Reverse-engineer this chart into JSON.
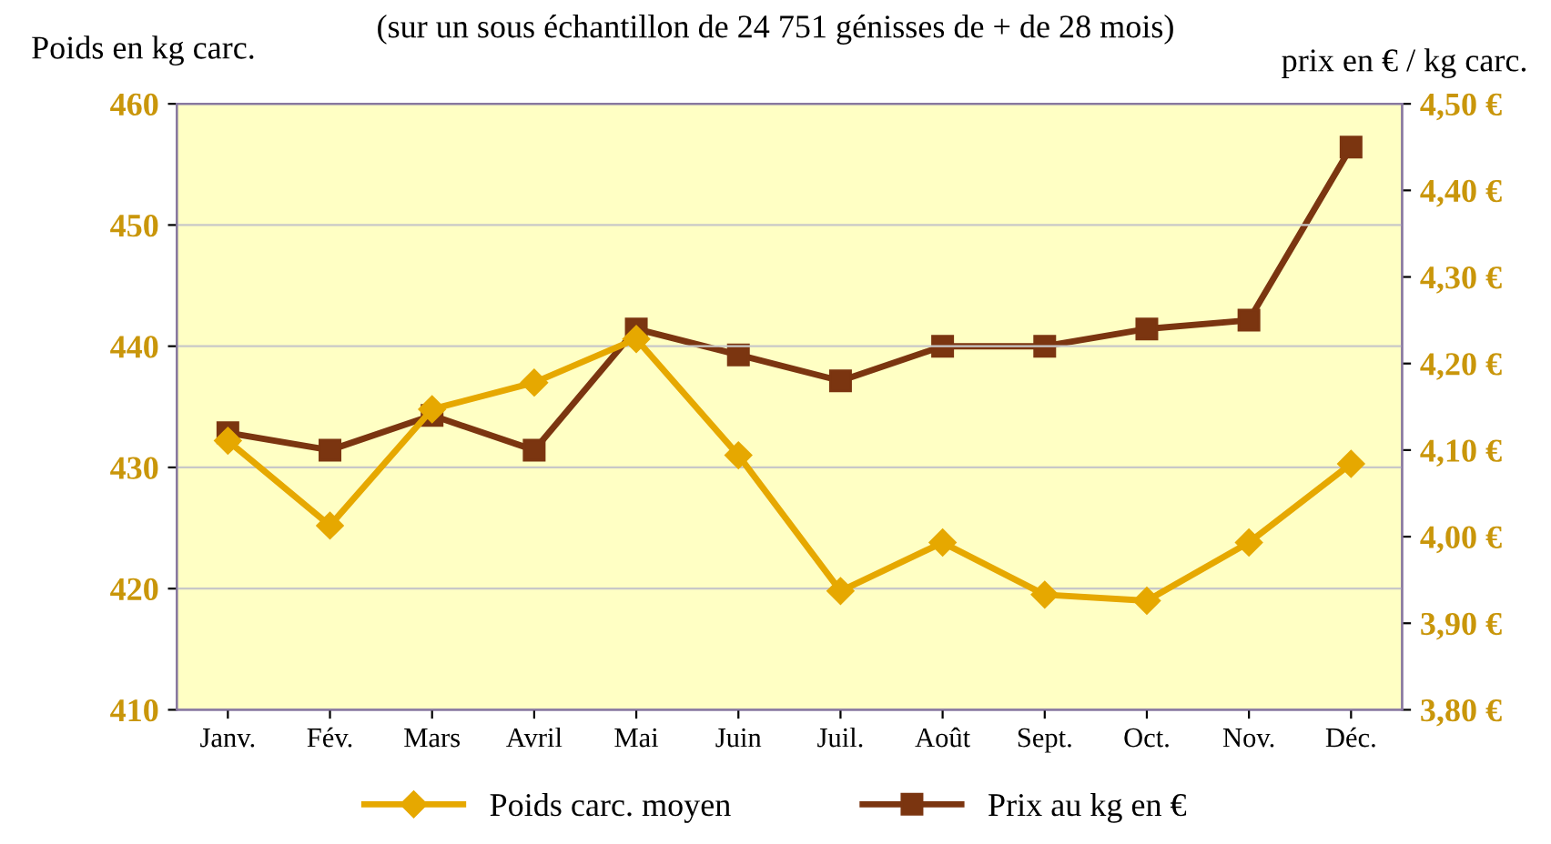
{
  "chart_data": {
    "type": "line",
    "title": "(sur un sous échantillon de 24 751 génisses de + de 28 mois)",
    "ylabel": "Poids en kg carc.",
    "y2label": "prix en € / kg carc.",
    "categories": [
      "Janv.",
      "Fév.",
      "Mars",
      "Avril",
      "Mai",
      "Juin",
      "Juil.",
      "Août",
      "Sept.",
      "Oct.",
      "Nov.",
      "Déc."
    ],
    "series": [
      {
        "name": "Poids carc. moyen",
        "color": "#e6a800",
        "marker": "diamond",
        "values": [
          432.2,
          425.2,
          434.8,
          437.0,
          440.6,
          431.0,
          419.8,
          423.8,
          419.5,
          419.0,
          423.8,
          430.3
        ]
      },
      {
        "name": "Prix au kg en €",
        "color": "#7b3510",
        "marker": "square",
        "axis": "y2",
        "values": [
          4.12,
          4.1,
          4.14,
          4.1,
          4.24,
          4.21,
          4.18,
          4.22,
          4.22,
          4.24,
          4.25,
          4.45
        ]
      }
    ],
    "ylim": [
      410,
      460
    ],
    "yticks": [
      410,
      420,
      430,
      440,
      450,
      460
    ],
    "y2lim": [
      3.8,
      4.5
    ],
    "y2ticks": [
      {
        "value": 3.8,
        "label": "3,80 €"
      },
      {
        "value": 3.9,
        "label": "3,90 €"
      },
      {
        "value": 4.0,
        "label": "4,00 €"
      },
      {
        "value": 4.1,
        "label": "4,10 €"
      },
      {
        "value": 4.2,
        "label": "4,20 €"
      },
      {
        "value": 4.3,
        "label": "4,30 €"
      },
      {
        "value": 4.4,
        "label": "4,40 €"
      },
      {
        "value": 4.5,
        "label": "4,50 €"
      }
    ],
    "grid": "y",
    "legend": "bottom"
  }
}
